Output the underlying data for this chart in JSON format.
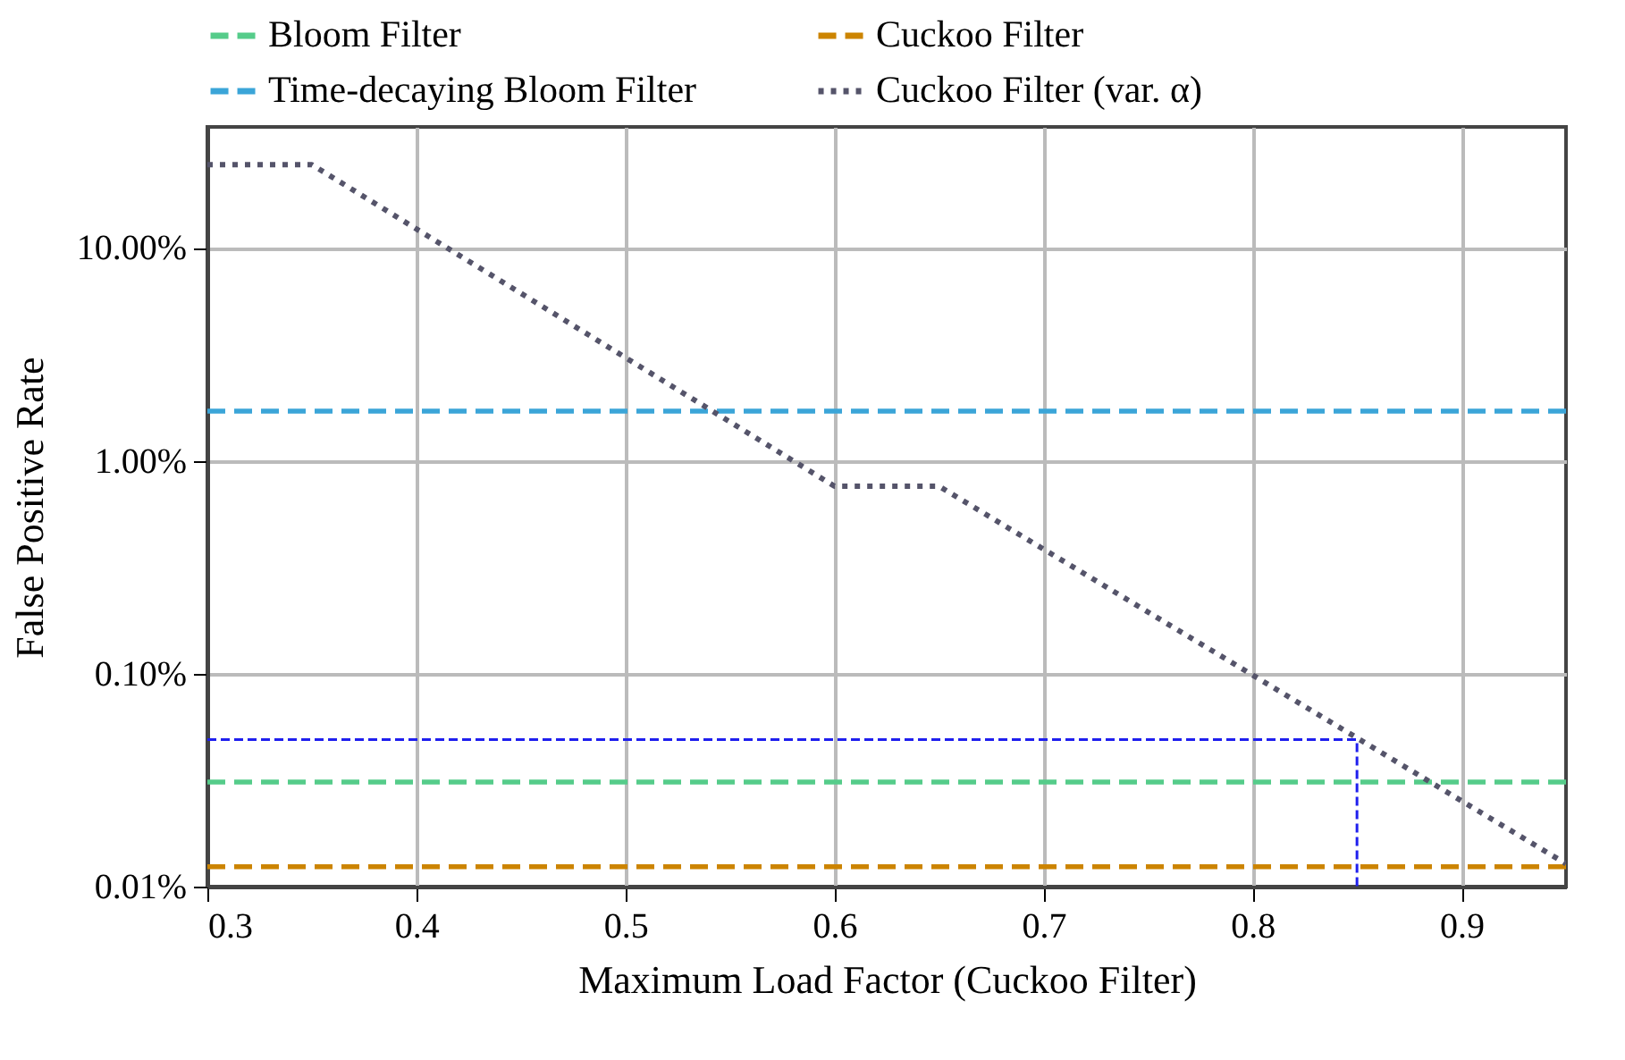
{
  "chart_data": {
    "type": "line",
    "xlabel": "Maximum Load Factor (Cuckoo Filter)",
    "ylabel": "False Positive Rate",
    "log": "y",
    "grid": true,
    "legend": "top",
    "marker": "none",
    "xlim": [
      0.3,
      0.95
    ],
    "xticks": [
      0.3,
      0.4,
      0.5,
      0.6,
      0.7,
      0.8,
      0.9
    ],
    "ylim": [
      0.01,
      37
    ],
    "yticks": [
      {
        "value": 0.01,
        "label": "0.01%"
      },
      {
        "value": 0.1,
        "label": "0.10%"
      },
      {
        "value": 1,
        "label": "1.00%"
      },
      {
        "value": 10,
        "label": "10.00%"
      }
    ],
    "series": [
      {
        "name": "Bloom Filter",
        "color": "#55cc8a",
        "line_style": "dashed",
        "x": [
          0.3,
          0.95
        ],
        "values": [
          0.031,
          0.031
        ]
      },
      {
        "name": "Cuckoo Filter",
        "color": "#cc8400",
        "line_style": "dashed",
        "x": [
          0.3,
          0.95
        ],
        "values": [
          0.0124,
          0.0124
        ]
      },
      {
        "name": "Time-decaying Bloom Filter",
        "color": "#3ba5d8",
        "line_style": "dashed",
        "x": [
          0.3,
          0.95
        ],
        "values": [
          1.71,
          1.71
        ]
      },
      {
        "name": "Cuckoo Filter (var. α)",
        "color": "#55546a",
        "line_style": "dotted",
        "x": [
          0.3,
          0.35,
          0.6,
          0.65,
          0.95
        ],
        "values": [
          24.6,
          24.6,
          0.76,
          0.76,
          0.0128
        ]
      },
      {
        "color": "#1f1fee",
        "line_style": "dashed",
        "x": [
          0.3,
          0.85,
          0.85
        ],
        "values": [
          0.049,
          0.049,
          0.01
        ]
      }
    ]
  }
}
